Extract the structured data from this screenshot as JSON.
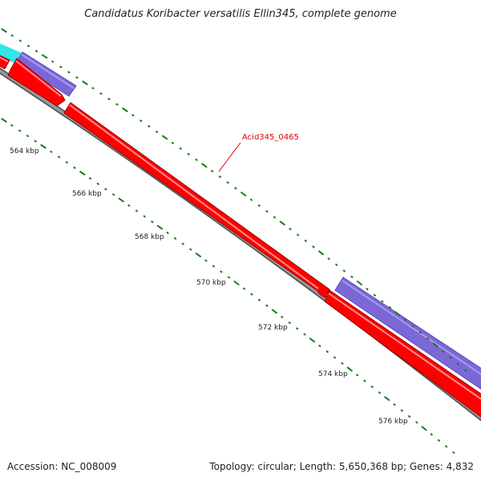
{
  "title": "Candidatus Koribacter versatilis Ellin345, complete genome",
  "footer": {
    "accession": "Accession: NC_008009",
    "summary": "Topology: circular; Length: 5,650,368 bp; Genes: 4,832"
  },
  "gene_label": "Acid345_0465",
  "ticks": [
    "564 kbp",
    "566 kbp",
    "568 kbp",
    "570 kbp",
    "572 kbp",
    "574 kbp",
    "576 kbp"
  ],
  "colors": {
    "forward_red": "#ff0000",
    "purple": "#7b68d6",
    "cyan": "#33e6e6",
    "backbone": "#7a7a7a",
    "tick_green": "#1a7a1a",
    "label_red": "#dd0000"
  }
}
